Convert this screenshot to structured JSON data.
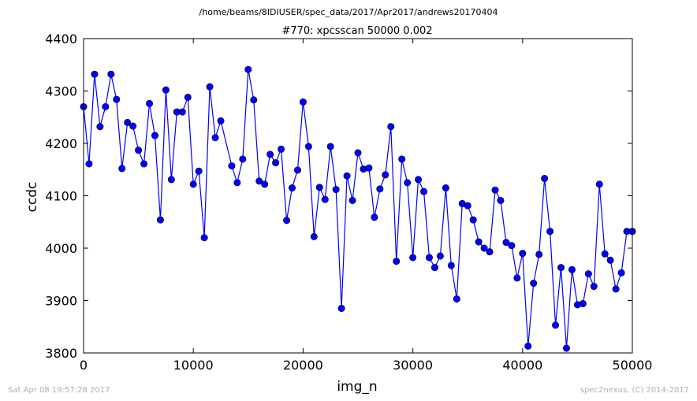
{
  "chart_data": {
    "type": "line",
    "suptitle": "/home/beams/8IDIUSER/spec_data/2017/Apr2017/andrews20170404",
    "title": "#770: xpcsscan 50000 0.002",
    "xlabel": "img_n",
    "ylabel": "ccdc",
    "xlim": [
      0,
      50000
    ],
    "ylim": [
      3800,
      4400
    ],
    "xticks": [
      0,
      10000,
      20000,
      30000,
      40000,
      50000
    ],
    "xtick_labels": [
      "0",
      "10000",
      "20000",
      "30000",
      "40000",
      "50000"
    ],
    "yticks": [
      3800,
      3900,
      4000,
      4100,
      4200,
      4300,
      4400
    ],
    "ytick_labels": [
      "3800",
      "3900",
      "4000",
      "4100",
      "4200",
      "4300",
      "4400"
    ],
    "grid": false,
    "legend": "none",
    "series": [
      {
        "color": "#0000ff",
        "x": [
          0,
          500,
          1000,
          1500,
          2000,
          2500,
          3000,
          3500,
          4000,
          4500,
          5000,
          5500,
          6000,
          6500,
          7000,
          7500,
          8000,
          8500,
          9000,
          9500,
          10000,
          10500,
          11000,
          11500,
          12000,
          12500,
          13500,
          14000,
          14500,
          15000,
          15500,
          16000,
          16500,
          17000,
          17500,
          18000,
          18500,
          19000,
          19500,
          20000,
          20500,
          21000,
          21500,
          22000,
          22500,
          23000,
          23500,
          24000,
          24500,
          25000,
          25500,
          26000,
          26500,
          27000,
          27500,
          28000,
          28500,
          29000,
          29500,
          30000,
          30500,
          31000,
          31500,
          32000,
          32500,
          33000,
          33500,
          34000,
          34500,
          35000,
          35500,
          36000,
          36500,
          37000,
          37500,
          38000,
          38500,
          39000,
          39500,
          40000,
          40500,
          41000,
          41500,
          42000,
          42500,
          43000,
          43500,
          44000,
          44500,
          45000,
          45500,
          46000,
          46500,
          47000,
          47500,
          48000,
          48500,
          49000,
          49500,
          50000
        ],
        "y": [
          4270,
          4161,
          4332,
          4232,
          4270,
          4332,
          4284,
          4152,
          4240,
          4233,
          4187,
          4161,
          4276,
          4215,
          4054,
          4302,
          4131,
          4260,
          4260,
          4288,
          4122,
          4147,
          4020,
          4308,
          4211,
          4243,
          4157,
          4125,
          4170,
          4341,
          4283,
          4128,
          4122,
          4179,
          4163,
          4189,
          4053,
          4115,
          4149,
          4279,
          4194,
          4022,
          4116,
          4093,
          4194,
          4112,
          3885,
          4138,
          4091,
          4182,
          4151,
          4153,
          4059,
          4113,
          4140,
          4232,
          3975,
          4170,
          4125,
          3982,
          4131,
          4108,
          3982,
          3963,
          3985,
          4115,
          3967,
          3903,
          4085,
          4081,
          4054,
          4012,
          4000,
          3993,
          4111,
          4091,
          4011,
          4005,
          3943,
          3990,
          3813,
          3933,
          3988,
          4133,
          4032,
          3853,
          3963,
          3809,
          3959,
          3892,
          3894,
          3951,
          3927,
          4122,
          3989,
          3977,
          3922,
          3953,
          4032,
          4032
        ]
      }
    ]
  },
  "footer": {
    "left": "Sat Apr 08 19:57:28 2017",
    "right": "spec2nexus, (C) 2014-2017"
  }
}
